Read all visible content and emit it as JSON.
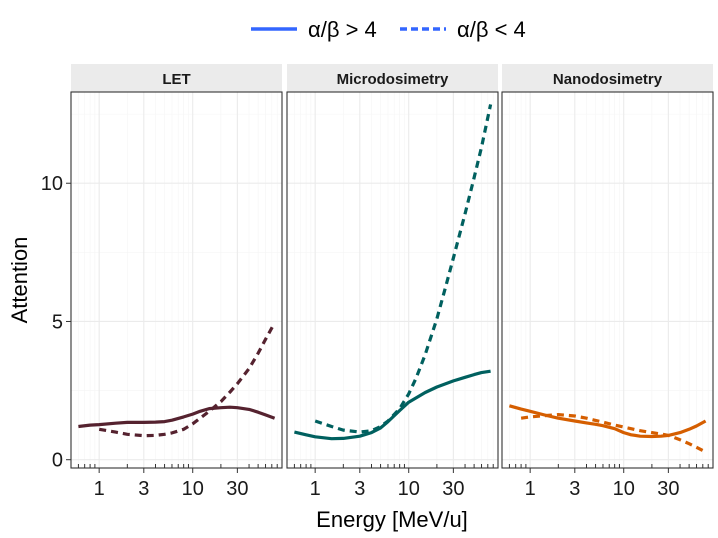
{
  "chart_data": {
    "type": "line",
    "title": "",
    "xlabel": "Energy [MeV/u]",
    "ylabel": "Attention",
    "x_scale": "log10",
    "xlim": [
      0.5,
      90
    ],
    "ylim": [
      -0.3,
      13.3
    ],
    "x_ticks": [
      1,
      3,
      10,
      30
    ],
    "x_tick_labels": [
      "1",
      "3",
      "10",
      "30"
    ],
    "y_ticks": [
      0,
      5,
      10
    ],
    "y_tick_labels": [
      "0",
      "5",
      "10"
    ],
    "legend": {
      "position": "top",
      "entries": [
        {
          "label": "α/β > 4",
          "linestyle": "solid",
          "color": "#3366ff"
        },
        {
          "label": "α/β < 4",
          "linestyle": "dashed",
          "color": "#3366ff"
        }
      ]
    },
    "facets": [
      {
        "label": "LET",
        "color": "#55222f",
        "series": [
          {
            "name": "α/β > 4",
            "linestyle": "solid",
            "x": [
              0.6,
              0.8,
              1,
              1.5,
              2,
              3,
              4,
              5,
              6,
              8,
              10,
              12,
              15,
              20,
              25,
              30,
              40,
              50,
              60,
              75
            ],
            "y": [
              1.2,
              1.25,
              1.27,
              1.32,
              1.35,
              1.35,
              1.36,
              1.38,
              1.43,
              1.55,
              1.65,
              1.75,
              1.85,
              1.88,
              1.9,
              1.88,
              1.82,
              1.72,
              1.62,
              1.5
            ]
          },
          {
            "name": "α/β < 4",
            "linestyle": "dashed",
            "x": [
              1,
              1.5,
              2,
              3,
              4,
              5,
              6,
              8,
              10,
              12,
              15,
              20,
              25,
              30,
              40,
              50,
              60,
              75
            ],
            "y": [
              1.1,
              1.0,
              0.92,
              0.87,
              0.88,
              0.92,
              0.97,
              1.1,
              1.3,
              1.5,
              1.75,
              2.1,
              2.45,
              2.75,
              3.3,
              3.85,
              4.35,
              4.95
            ]
          }
        ]
      },
      {
        "label": "Microdosimetry",
        "color": "#00605f",
        "series": [
          {
            "name": "α/β > 4",
            "linestyle": "solid",
            "x": [
              0.6,
              0.8,
              1,
              1.5,
              2,
              3,
              4,
              5,
              6,
              8,
              10,
              15,
              20,
              30,
              40,
              50,
              60,
              75
            ],
            "y": [
              1.0,
              0.9,
              0.83,
              0.76,
              0.77,
              0.85,
              0.98,
              1.15,
              1.38,
              1.78,
              2.08,
              2.43,
              2.63,
              2.85,
              2.98,
              3.08,
              3.15,
              3.2
            ]
          },
          {
            "name": "α/β < 4",
            "linestyle": "dashed",
            "x": [
              1,
              1.5,
              2,
              3,
              4,
              5,
              6,
              8,
              10,
              12,
              15,
              20,
              25,
              30,
              40,
              50,
              60,
              75
            ],
            "y": [
              1.4,
              1.2,
              1.07,
              1.0,
              1.05,
              1.2,
              1.4,
              1.85,
              2.38,
              2.95,
              3.8,
              5.1,
              6.3,
              7.3,
              8.9,
              10.2,
              11.3,
              12.85
            ]
          }
        ]
      },
      {
        "label": "Nanodosimetry",
        "color": "#d55e00",
        "series": [
          {
            "name": "α/β > 4",
            "linestyle": "solid",
            "x": [
              0.6,
              0.8,
              1,
              1.5,
              2,
              3,
              4,
              5,
              6,
              8,
              10,
              12,
              15,
              20,
              25,
              30,
              40,
              50,
              60,
              75
            ],
            "y": [
              1.95,
              1.83,
              1.75,
              1.6,
              1.5,
              1.4,
              1.33,
              1.28,
              1.23,
              1.12,
              0.98,
              0.9,
              0.85,
              0.84,
              0.85,
              0.88,
              0.98,
              1.1,
              1.22,
              1.4
            ]
          },
          {
            "name": "α/β < 4",
            "linestyle": "dashed",
            "x": [
              0.8,
              1,
              1.5,
              2,
              3,
              4,
              5,
              6,
              8,
              10,
              12,
              15,
              20,
              25,
              30,
              40,
              50,
              60,
              75
            ],
            "y": [
              1.5,
              1.55,
              1.6,
              1.63,
              1.58,
              1.5,
              1.42,
              1.36,
              1.25,
              1.18,
              1.12,
              1.05,
              0.98,
              0.93,
              0.88,
              0.72,
              0.58,
              0.45,
              0.28
            ]
          }
        ]
      }
    ]
  }
}
